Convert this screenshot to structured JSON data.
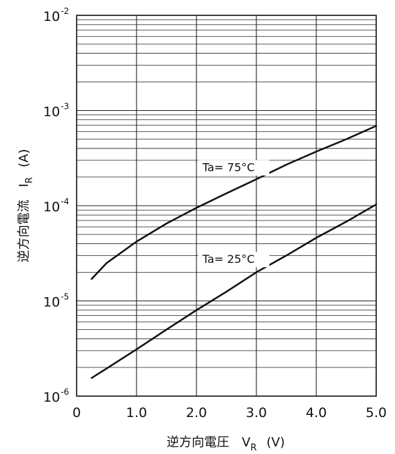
{
  "chart_data": {
    "type": "line",
    "xlabel": "逆方向電圧　V",
    "xlabel_sub": "R",
    "xlabel_unit": "(V)",
    "ylabel": "逆方向電流　I",
    "ylabel_sub": "R",
    "ylabel_unit": "(A)",
    "xlim": [
      0,
      5.0
    ],
    "ylim": [
      1e-06,
      0.01
    ],
    "yscale": "log",
    "grid": true,
    "x_ticks": [
      "0",
      "1.0",
      "2.0",
      "3.0",
      "4.0",
      "5.0"
    ],
    "y_ticks": [
      {
        "base": "10",
        "exp": "-6"
      },
      {
        "base": "10",
        "exp": "-5"
      },
      {
        "base": "10",
        "exp": "-4"
      },
      {
        "base": "10",
        "exp": "-3"
      },
      {
        "base": "10",
        "exp": "-2"
      }
    ],
    "series": [
      {
        "name": "Ta= 75°C",
        "x": [
          0.25,
          0.5,
          1.0,
          1.5,
          2.0,
          2.5,
          3.0,
          3.5,
          4.0,
          4.5,
          5.0
        ],
        "y": [
          1.7e-05,
          2.5e-05,
          4.2e-05,
          6.5e-05,
          9.5e-05,
          0.000135,
          0.00019,
          0.00027,
          0.00037,
          0.0005,
          0.00069
        ]
      },
      {
        "name": "Ta= 25°C",
        "x": [
          0.25,
          0.5,
          1.0,
          1.5,
          2.0,
          2.5,
          3.0,
          3.5,
          4.0,
          4.5,
          5.0
        ],
        "y": [
          1.55e-06,
          1.95e-06,
          3.1e-06,
          5e-06,
          8e-06,
          1.25e-05,
          2e-05,
          3e-05,
          4.6e-05,
          6.8e-05,
          0.000103
        ]
      }
    ]
  }
}
